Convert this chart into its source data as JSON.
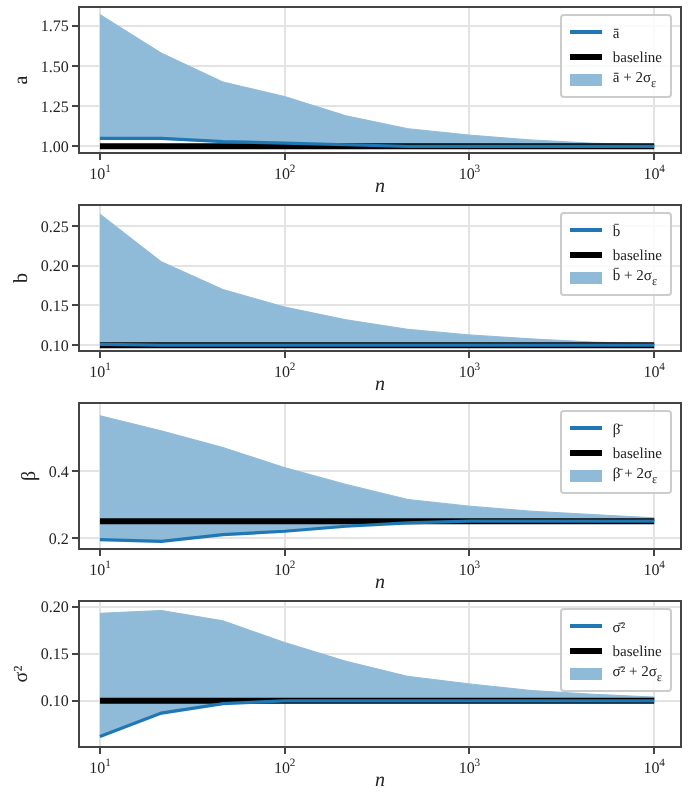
{
  "chart_data": [
    {
      "type": "line",
      "xlabel": "n",
      "ylabel": "a",
      "log": "x",
      "x": [
        10,
        21.5,
        46.4,
        100,
        215,
        464,
        1000,
        2154,
        4642,
        10000
      ],
      "xlim": [
        7.8,
        13800
      ],
      "xticks": [
        {
          "value": 10,
          "label": "10$^{1}$"
        },
        {
          "value": 100,
          "label": "10$^{2}$"
        },
        {
          "value": 1000,
          "label": "10$^{3}$"
        },
        {
          "value": 10000,
          "label": "10$^{4}$"
        }
      ],
      "ylim": [
        0.965,
        1.86
      ],
      "yticks": [
        {
          "value": 1,
          "label": "1.00"
        },
        1.25,
        {
          "value": 1.5,
          "label": "1.50"
        },
        1.75
      ],
      "grid": true,
      "legend": "top right",
      "marker": "none",
      "line_style": "solid",
      "series": [
        {
          "name": "ā",
          "type": "line",
          "color": "#1f77b4",
          "values": [
            1.05,
            1.05,
            1.03,
            1.02,
            1.01,
            1.0,
            1.0,
            1.0,
            1.0,
            1.0
          ]
        },
        {
          "name": "baseline",
          "type": "line",
          "color": "#000000",
          "values": [
            1,
            1,
            1,
            1,
            1,
            1,
            1,
            1,
            1,
            1
          ]
        },
        {
          "name": "ā + 2σ$_{ε}$",
          "type": "area",
          "color": "#8fbbd9",
          "values": [
            1.82,
            1.58,
            1.4,
            1.31,
            1.19,
            1.11,
            1.07,
            1.04,
            1.02,
            1.01
          ]
        }
      ]
    },
    {
      "type": "line",
      "xlabel": "n",
      "ylabel": "b",
      "log": "x",
      "x": [
        10,
        21.5,
        46.4,
        100,
        215,
        464,
        1000,
        2154,
        4642,
        10000
      ],
      "xlim": [
        7.8,
        13800
      ],
      "xticks": [
        {
          "value": 10,
          "label": "10$^{1}$"
        },
        {
          "value": 100,
          "label": "10$^{2}$"
        },
        {
          "value": 1000,
          "label": "10$^{3}$"
        },
        {
          "value": 10000,
          "label": "10$^{4}$"
        }
      ],
      "ylim": [
        0.094,
        0.275
      ],
      "yticks": [
        {
          "value": 0.1,
          "label": "0.10"
        },
        0.15,
        {
          "value": 0.2,
          "label": "0.20"
        },
        0.25
      ],
      "grid": true,
      "legend": "top right",
      "marker": "none",
      "line_style": "solid",
      "series": [
        {
          "name": "b̄",
          "type": "line",
          "color": "#1f77b4",
          "values": [
            0.101,
            0.1,
            0.1,
            0.1,
            0.1,
            0.1,
            0.1,
            0.1,
            0.1,
            0.1
          ]
        },
        {
          "name": "baseline",
          "type": "line",
          "color": "#000000",
          "values": [
            0.1,
            0.1,
            0.1,
            0.1,
            0.1,
            0.1,
            0.1,
            0.1,
            0.1,
            0.1
          ]
        },
        {
          "name": "b̄ + 2σ$_{ε}$",
          "type": "area",
          "color": "#8fbbd9",
          "values": [
            0.265,
            0.205,
            0.17,
            0.148,
            0.132,
            0.12,
            0.113,
            0.108,
            0.104,
            0.102
          ]
        }
      ]
    },
    {
      "type": "line",
      "xlabel": "n",
      "ylabel": "β",
      "log": "x",
      "x": [
        10,
        21.5,
        46.4,
        100,
        215,
        464,
        1000,
        2154,
        4642,
        10000
      ],
      "xlim": [
        7.8,
        13800
      ],
      "xticks": [
        {
          "value": 10,
          "label": "10$^{1}$"
        },
        {
          "value": 100,
          "label": "10$^{2}$"
        },
        {
          "value": 1000,
          "label": "10$^{3}$"
        },
        {
          "value": 10000,
          "label": "10$^{4}$"
        }
      ],
      "ylim": [
        0.17,
        0.6
      ],
      "yticks": [
        0.2,
        0.4
      ],
      "grid": true,
      "legend": "top right",
      "marker": "none",
      "line_style": "solid",
      "series": [
        {
          "name": "β̄",
          "type": "line",
          "color": "#1f77b4",
          "values": [
            0.195,
            0.19,
            0.21,
            0.22,
            0.235,
            0.245,
            0.25,
            0.25,
            0.25,
            0.25
          ]
        },
        {
          "name": "baseline",
          "type": "line",
          "color": "#000000",
          "values": [
            0.25,
            0.25,
            0.25,
            0.25,
            0.25,
            0.25,
            0.25,
            0.25,
            0.25,
            0.25
          ]
        },
        {
          "name": "β̄ + 2σ$_{ε}$",
          "type": "area",
          "color": "#8fbbd9",
          "values": [
            0.565,
            0.52,
            0.47,
            0.41,
            0.36,
            0.315,
            0.295,
            0.28,
            0.27,
            0.26
          ]
        }
      ]
    },
    {
      "type": "line",
      "xlabel": "n",
      "ylabel": "σ²",
      "log": "x",
      "x": [
        10,
        21.5,
        46.4,
        100,
        215,
        464,
        1000,
        2154,
        4642,
        10000
      ],
      "xlim": [
        7.8,
        13800
      ],
      "xticks": [
        {
          "value": 10,
          "label": "10$^{1}$"
        },
        {
          "value": 100,
          "label": "10$^{2}$"
        },
        {
          "value": 1000,
          "label": "10$^{3}$"
        },
        {
          "value": 10000,
          "label": "10$^{4}$"
        }
      ],
      "ylim": [
        0.052,
        0.205
      ],
      "yticks": [
        {
          "value": 0.1,
          "label": "0.10"
        },
        0.15,
        {
          "value": 0.2,
          "label": "0.20"
        }
      ],
      "grid": true,
      "legend": "top right",
      "marker": "none",
      "line_style": "solid",
      "series": [
        {
          "name": "σ̄²",
          "type": "line",
          "color": "#1f77b4",
          "values": [
            0.062,
            0.087,
            0.097,
            0.1,
            0.1,
            0.1,
            0.1,
            0.1,
            0.1,
            0.1
          ]
        },
        {
          "name": "baseline",
          "type": "line",
          "color": "#000000",
          "values": [
            0.1,
            0.1,
            0.1,
            0.1,
            0.1,
            0.1,
            0.1,
            0.1,
            0.1,
            0.1
          ]
        },
        {
          "name": "σ̄² + 2σ$_{ε}$",
          "type": "area",
          "color": "#8fbbd9",
          "values": [
            0.193,
            0.196,
            0.185,
            0.162,
            0.142,
            0.126,
            0.118,
            0.111,
            0.107,
            0.104
          ]
        }
      ]
    }
  ]
}
